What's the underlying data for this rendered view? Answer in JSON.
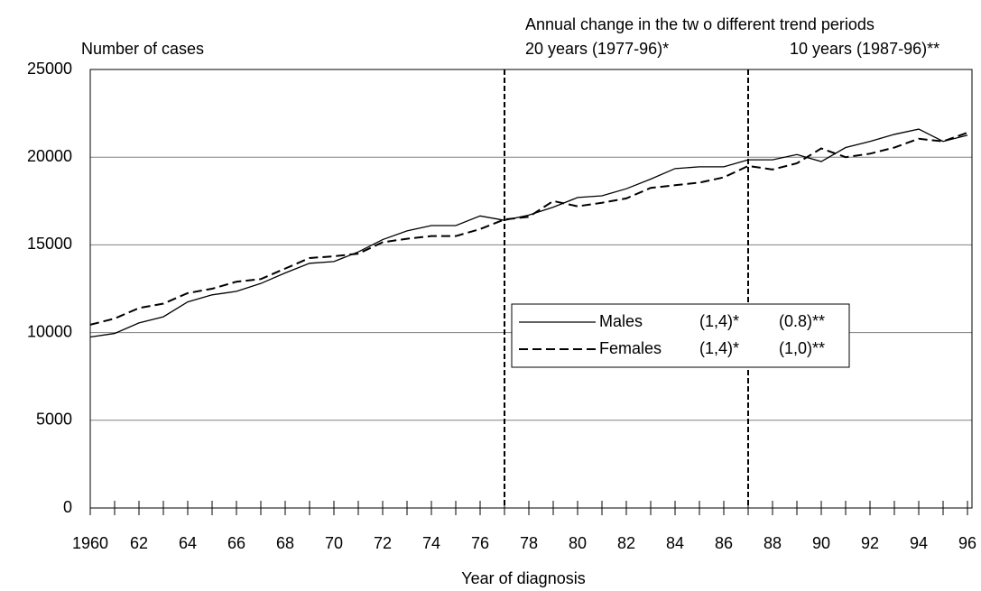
{
  "chart_data": {
    "type": "line",
    "y_label": "Number of cases",
    "x_label": "Year of diagnosis",
    "annotation": "Annual change in the tw o different trend periods",
    "period_labels": [
      "20 years (1977-96)*",
      "10 years (1987-96)**"
    ],
    "reference_lines": [
      1977,
      1987
    ],
    "x": [
      1960,
      1961,
      1962,
      1963,
      1964,
      1965,
      1966,
      1967,
      1968,
      1969,
      1970,
      1971,
      1972,
      1973,
      1974,
      1975,
      1976,
      1977,
      1978,
      1979,
      1980,
      1981,
      1982,
      1983,
      1984,
      1985,
      1986,
      1987,
      1988,
      1989,
      1990,
      1991,
      1992,
      1993,
      1994,
      1995,
      1996
    ],
    "series": [
      {
        "name": "Males",
        "color": "#000000",
        "dash": false,
        "legend_values": [
          "(1,4)*",
          "(0.8)**"
        ],
        "values": [
          9750,
          9950,
          10550,
          10900,
          11750,
          12150,
          12350,
          12800,
          13400,
          13950,
          14050,
          14600,
          15300,
          15800,
          16100,
          16100,
          16650,
          16400,
          16700,
          17150,
          17700,
          17800,
          18200,
          18750,
          19350,
          19450,
          19450,
          19850,
          19850,
          20150,
          19750,
          20550,
          20900,
          21300,
          21600,
          20900,
          21250
        ]
      },
      {
        "name": "Females",
        "color": "#000000",
        "dash": true,
        "legend_values": [
          "(1,4)*",
          "(1,0)**"
        ],
        "values": [
          10450,
          10800,
          11400,
          11650,
          12250,
          12500,
          12900,
          13050,
          13650,
          14250,
          14350,
          14500,
          15150,
          15350,
          15500,
          15500,
          15900,
          16450,
          16600,
          17500,
          17200,
          17400,
          17650,
          18250,
          18400,
          18550,
          18850,
          19500,
          19300,
          19650,
          20500,
          20000,
          20200,
          20550,
          21050,
          20900,
          21400
        ]
      }
    ],
    "xlim": [
      1960,
      1996
    ],
    "xticks": [
      {
        "value": 1960,
        "label": "1960"
      },
      {
        "value": 1962,
        "label": "62"
      },
      {
        "value": 1964,
        "label": "64"
      },
      {
        "value": 1966,
        "label": "66"
      },
      {
        "value": 1968,
        "label": "68"
      },
      {
        "value": 1970,
        "label": "70"
      },
      {
        "value": 1972,
        "label": "72"
      },
      {
        "value": 1974,
        "label": "74"
      },
      {
        "value": 1976,
        "label": "76"
      },
      {
        "value": 1978,
        "label": "78"
      },
      {
        "value": 1980,
        "label": "80"
      },
      {
        "value": 1982,
        "label": "82"
      },
      {
        "value": 1984,
        "label": "84"
      },
      {
        "value": 1986,
        "label": "86"
      },
      {
        "value": 1988,
        "label": "88"
      },
      {
        "value": 1990,
        "label": "90"
      },
      {
        "value": 1992,
        "label": "92"
      },
      {
        "value": 1994,
        "label": "94"
      },
      {
        "value": 1996,
        "label": "96"
      }
    ],
    "ylim": [
      0,
      25000
    ],
    "yticks": [
      0,
      5000,
      10000,
      15000,
      20000,
      25000
    ],
    "grid": true
  }
}
